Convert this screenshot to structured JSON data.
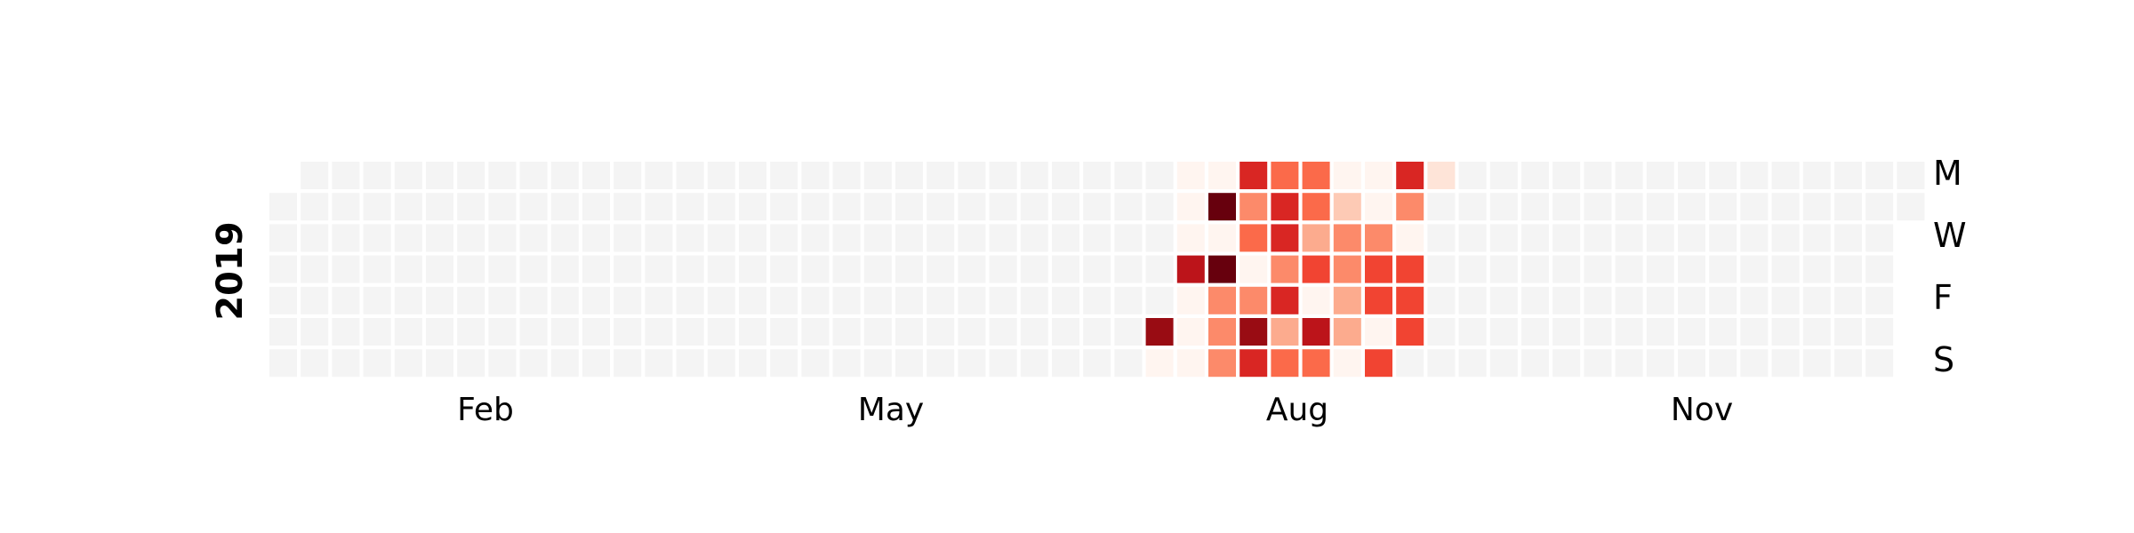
{
  "chart_data": {
    "type": "heatmap",
    "title": "",
    "year_label": "2019",
    "x_tick_labels": [
      "Feb",
      "May",
      "Aug",
      "Nov"
    ],
    "y_tick_labels": [
      "M",
      "W",
      "F",
      "S"
    ],
    "empty_color": "#f4f4f4",
    "colormap": "Reds",
    "value_range": [
      0,
      10
    ],
    "weeks": 53,
    "active_weeks": [
      {
        "week": 28,
        "values": [
          null,
          null,
          null,
          null,
          null,
          9,
          0
        ]
      },
      {
        "week": 29,
        "values": [
          0,
          0,
          0,
          8,
          0,
          0,
          0
        ]
      },
      {
        "week": 30,
        "values": [
          0,
          10,
          0,
          10,
          4,
          4,
          4
        ]
      },
      {
        "week": 31,
        "values": [
          7,
          4,
          5,
          0,
          4,
          9,
          7
        ]
      },
      {
        "week": 32,
        "values": [
          5,
          7,
          7,
          4,
          7,
          3,
          5
        ]
      },
      {
        "week": 33,
        "values": [
          5,
          5,
          3,
          6,
          0,
          8,
          5
        ]
      },
      {
        "week": 34,
        "values": [
          0,
          2,
          4,
          4,
          3,
          3,
          0
        ]
      },
      {
        "week": 35,
        "values": [
          0,
          0,
          4,
          6,
          6,
          0,
          6
        ]
      },
      {
        "week": 36,
        "values": [
          7,
          4,
          0,
          6,
          6,
          6,
          null
        ]
      },
      {
        "week": 37,
        "values": [
          1,
          null,
          null,
          null,
          null,
          null,
          null
        ]
      }
    ]
  }
}
